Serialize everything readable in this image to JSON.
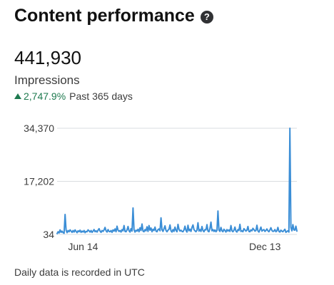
{
  "card": {
    "title": "Content performance",
    "help_icon": "help-circle-icon",
    "total": "441,930",
    "metric": "Impressions",
    "change_icon": "arrow-up-icon",
    "change": "2,747.9%",
    "period": "Past 365 days",
    "footer": "Daily data is recorded in UTC"
  },
  "colors": {
    "line": "#3b8ed6",
    "positive": "#1e7a4f",
    "grid": "#dadce0"
  },
  "chart_data": {
    "type": "line",
    "xlabel": "",
    "ylabel": "",
    "ylim": [
      34,
      34370
    ],
    "y_ticks": [
      34,
      17202,
      34370
    ],
    "y_tick_labels": [
      "34",
      "17,202",
      "34,370"
    ],
    "x_ticks": [
      26,
      208
    ],
    "x_tick_labels": [
      "Jun 14",
      "Dec 13"
    ],
    "grid": true,
    "series": [
      {
        "values": [
          300,
          900,
          500,
          1500,
          700,
          1100,
          600,
          400,
          6500,
          1400,
          600,
          1300,
          900,
          1500,
          1100,
          700,
          1300,
          800,
          1500,
          1000,
          600,
          1200,
          900,
          1400,
          700,
          1100,
          800,
          1300,
          600,
          1000,
          900,
          1500,
          1200,
          800,
          1300,
          700,
          1100,
          1600,
          900,
          1200,
          800,
          1400,
          1900,
          1100,
          700,
          1300,
          1000,
          1500,
          2300,
          1200,
          800,
          1600,
          1000,
          900,
          1300,
          700,
          1500,
          1100,
          1800,
          900,
          2700,
          1400,
          1000,
          1300,
          800,
          1600,
          1200,
          2900,
          1000,
          900,
          1500,
          2600,
          1200,
          800,
          1900,
          1100,
          8600,
          1500,
          800,
          1400,
          1100,
          1700,
          900,
          2200,
          1300,
          3400,
          1100,
          900,
          1600,
          1200,
          2500,
          1000,
          2900,
          1400,
          2100,
          900,
          1700,
          1300,
          2400,
          1100,
          900,
          1600,
          1800,
          1200,
          5400,
          1500,
          1000,
          1900,
          2800,
          1300,
          900,
          1400,
          1700,
          3100,
          1200,
          800,
          1600,
          1000,
          2400,
          1300,
          900,
          3300,
          1700,
          1100,
          1400,
          1000,
          900,
          1500,
          2700,
          1300,
          800,
          3000,
          1200,
          1700,
          1000,
          2300,
          3100,
          1600,
          1200,
          900,
          1400,
          3800,
          1100,
          1600,
          1000,
          2600,
          1300,
          900,
          1600,
          1500,
          3200,
          1100,
          900,
          2000,
          4000,
          1200,
          1600,
          1000,
          1500,
          900,
          1300,
          7600,
          1400,
          1000,
          2300,
          1200,
          900,
          1700,
          1300,
          800,
          1600,
          1100,
          1500,
          1000,
          2900,
          1200,
          900,
          1400,
          2400,
          1100,
          800,
          1600,
          1300,
          3300,
          1000,
          1200,
          900,
          1900,
          1500,
          1100,
          1400,
          2600,
          1000,
          900,
          1500,
          1200,
          2000,
          1600,
          1100,
          1300,
          3000,
          1200,
          800,
          1500,
          2400,
          1100,
          1400,
          1600,
          1000,
          1300,
          1800,
          1200,
          900,
          1500,
          2200,
          1300,
          1000,
          1100,
          1600,
          900,
          1200,
          2300,
          1000,
          800,
          1400,
          1100,
          900,
          1300,
          1700,
          700,
          1000,
          1200,
          800,
          34370,
          2300,
          1200,
          3200,
          1500,
          1400,
          2700,
          1100
        ]
      }
    ]
  }
}
